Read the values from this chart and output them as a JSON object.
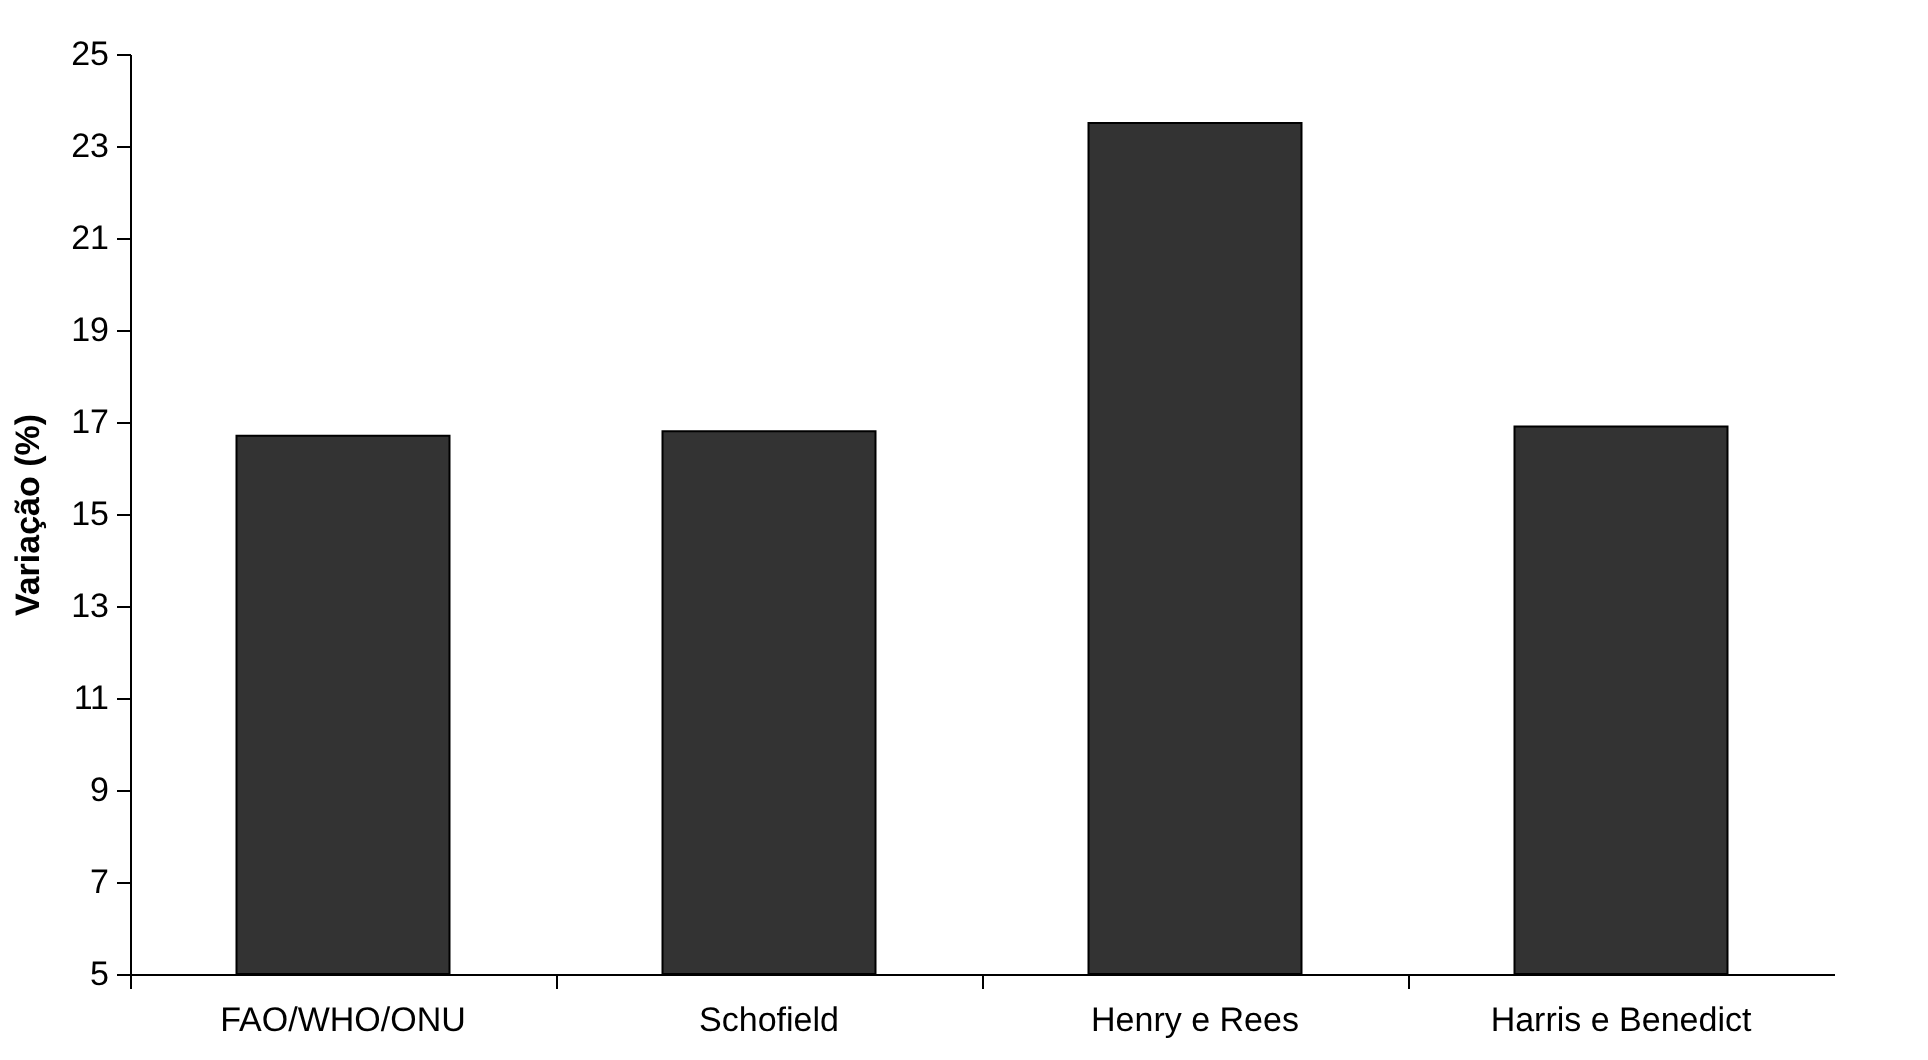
{
  "chart_data": {
    "type": "bar",
    "ylabel": "Variação (%)",
    "categories": [
      "FAO/WHO/ONU",
      "Schofield",
      "Henry e Rees",
      "Harris e Benedict"
    ],
    "values": [
      16.7,
      16.8,
      23.5,
      16.9
    ],
    "color": "#333333",
    "ylim": [
      5,
      25
    ],
    "yticks": [
      5,
      7,
      9,
      11,
      13,
      15,
      17,
      19,
      21,
      23,
      25
    ],
    "grid": false
  }
}
